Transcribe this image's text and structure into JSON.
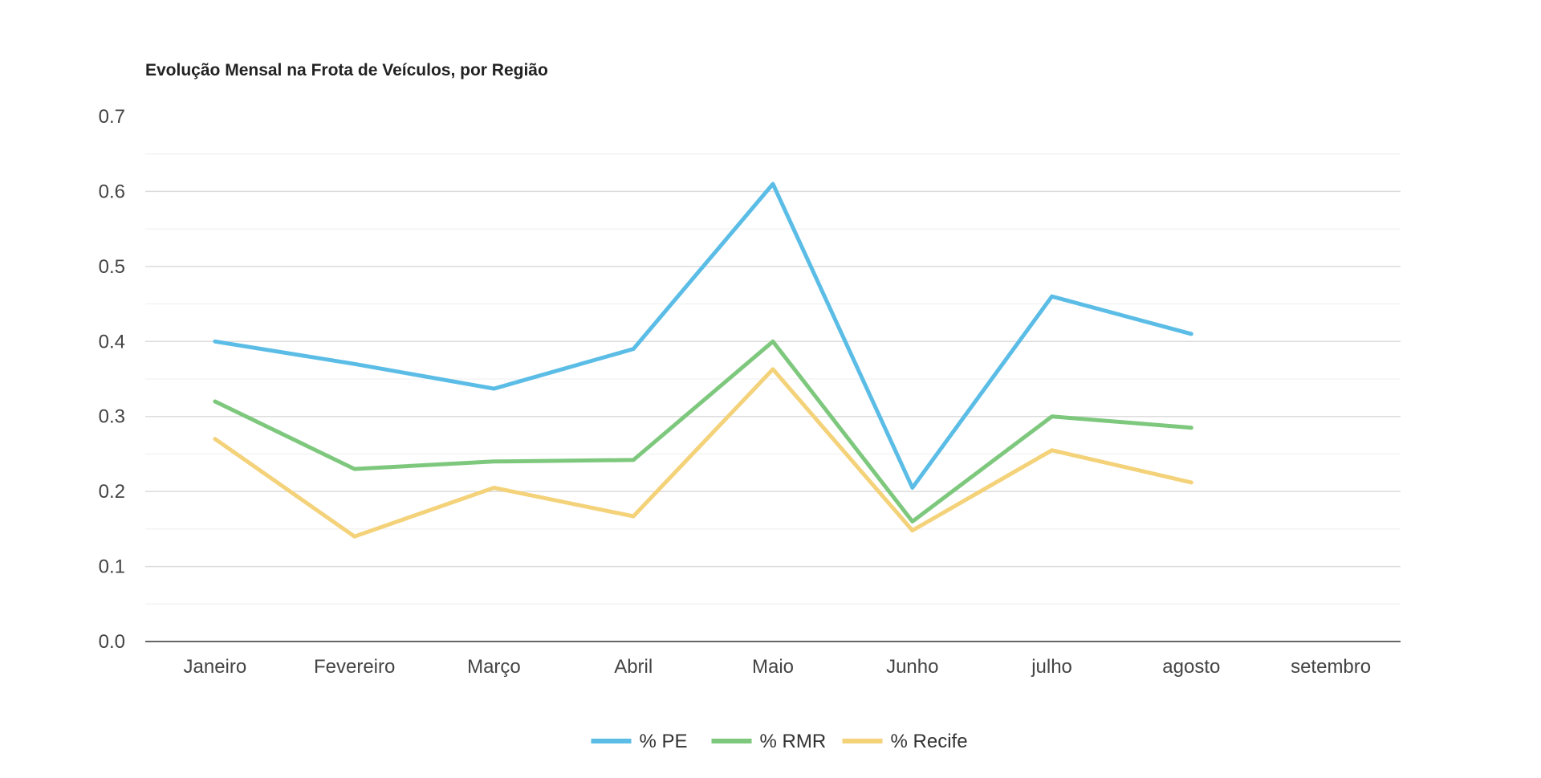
{
  "chart_data": {
    "type": "line",
    "title": "Evolução Mensal na Frota de Veículos, por Região",
    "xlabel": "",
    "ylabel": "",
    "categories": [
      "Janeiro",
      "Fevereiro",
      "Março",
      "Abril",
      "Maio",
      "Junho",
      "julho",
      "agosto",
      "setembro"
    ],
    "ylim": [
      0,
      0.7
    ],
    "yticks": [
      "0.0",
      "0.1",
      "0.2",
      "0.3",
      "0.4",
      "0.5",
      "0.6",
      "0.7"
    ],
    "grid": true,
    "legend_position": "bottom",
    "series": [
      {
        "name": "% PE",
        "color": "#5bbde6",
        "values": [
          0.4,
          0.37,
          0.337,
          0.39,
          0.61,
          0.205,
          0.46,
          0.41,
          null
        ]
      },
      {
        "name": "% RMR",
        "color": "#7ec87e",
        "values": [
          0.32,
          0.23,
          0.24,
          0.242,
          0.4,
          0.16,
          0.3,
          0.285,
          null
        ]
      },
      {
        "name": "% Recife",
        "color": "#f4d27a",
        "values": [
          0.27,
          0.14,
          0.205,
          0.167,
          0.363,
          0.148,
          0.255,
          0.212,
          null
        ]
      }
    ]
  }
}
